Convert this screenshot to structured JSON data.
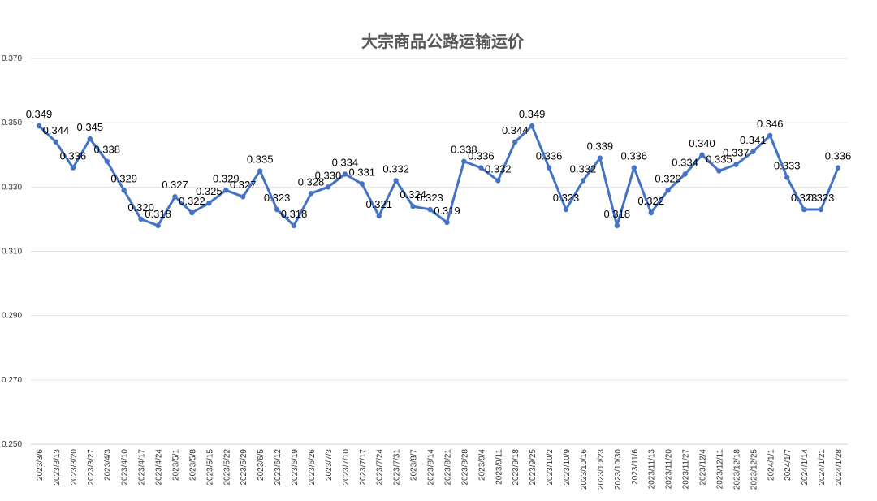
{
  "chart_data": {
    "type": "line",
    "title": "大宗商品公路运输运价",
    "xlabel": "",
    "ylabel": "",
    "ylim": [
      0.25,
      0.37
    ],
    "yticks": [
      "0.250",
      "0.270",
      "0.290",
      "0.310",
      "0.330",
      "0.350",
      "0.370"
    ],
    "grid": true,
    "legend": "none",
    "categories": [
      "2023/3/6",
      "2023/3/13",
      "2023/3/20",
      "2023/3/27",
      "2023/4/3",
      "2023/4/10",
      "2023/4/17",
      "2023/4/24",
      "2023/5/1",
      "2023/5/8",
      "2023/5/15",
      "2023/5/22",
      "2023/5/29",
      "2023/6/5",
      "2023/6/12",
      "2023/6/19",
      "2023/6/26",
      "2023/7/3",
      "2023/7/10",
      "2023/7/17",
      "2023/7/24",
      "2023/7/31",
      "2023/8/7",
      "2023/8/14",
      "2023/8/21",
      "2023/8/28",
      "2023/9/4",
      "2023/9/11",
      "2023/9/18",
      "2023/9/25",
      "2023/10/2",
      "2023/10/9",
      "2023/10/16",
      "2023/10/23",
      "2023/10/30",
      "2023/11/6",
      "2023/11/13",
      "2023/11/20",
      "2023/11/27",
      "2023/12/4",
      "2023/12/11",
      "2023/12/18",
      "2023/12/25",
      "2024/1/1",
      "2024/1/7",
      "2024/1/14",
      "2024/1/21",
      "2024/1/28"
    ],
    "series": [
      {
        "name": "",
        "color": "#4472c4",
        "values": [
          0.349,
          0.344,
          0.336,
          0.345,
          0.338,
          0.329,
          0.32,
          0.318,
          0.327,
          0.322,
          0.325,
          0.329,
          0.327,
          0.335,
          0.323,
          0.318,
          0.328,
          0.33,
          0.334,
          0.331,
          0.321,
          0.332,
          0.324,
          0.323,
          0.319,
          0.338,
          0.336,
          0.332,
          0.344,
          0.349,
          0.336,
          0.323,
          0.332,
          0.339,
          0.318,
          0.336,
          0.322,
          0.329,
          0.334,
          0.34,
          0.335,
          0.337,
          0.341,
          0.346,
          0.333,
          0.323,
          0.323,
          0.336
        ],
        "labels": [
          "0.349",
          "0.344",
          "0.336",
          "0.345",
          "0.338",
          "0.329",
          "0.320",
          "0.318",
          "0.327",
          "0.322",
          "0.325",
          "0.329",
          "0.327",
          "0.335",
          "0.323",
          "0.318",
          "0.328",
          "0.330",
          "0.334",
          "0.331",
          "0.321",
          "0.332",
          "0.324",
          "0.323",
          "0.319",
          "0.338",
          "0.336",
          "0.332",
          "0.344",
          "0.349",
          "0.336",
          "0.323",
          "0.332",
          "0.339",
          "0.318",
          "0.336",
          "0.322",
          "0.329",
          "0.334",
          "0.340",
          "0.335",
          "0.337",
          "0.341",
          "0.346",
          "0.333",
          "0.323",
          "0.323",
          "0.336"
        ]
      }
    ]
  }
}
